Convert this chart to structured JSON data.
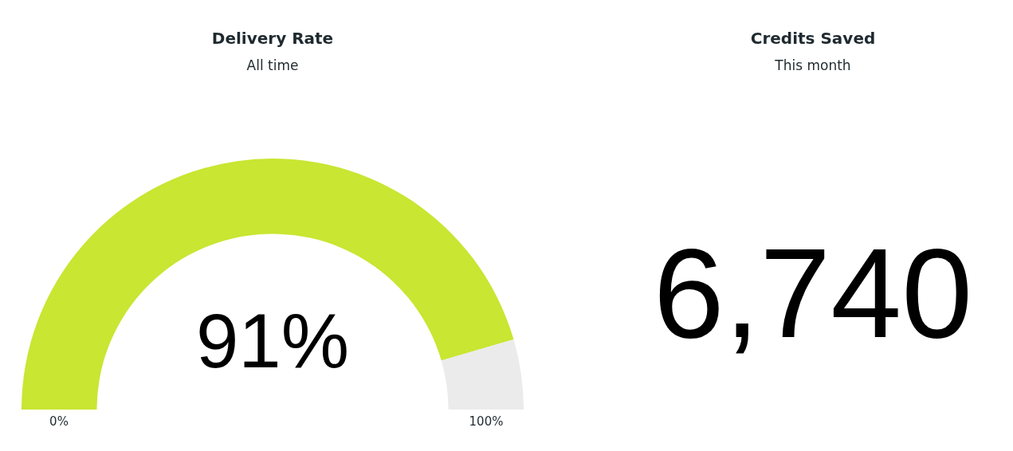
{
  "chart_data": [
    {
      "type": "donut",
      "title": "Delivery Rate",
      "subtitle": "All time",
      "categories": [
        null,
        null
      ],
      "values": [
        91,
        9
      ],
      "colors": [
        "#c8e632",
        "#ebebeb"
      ],
      "value_labels": [
        "91%",
        null
      ],
      "annotations": [
        "0%",
        "100%"
      ],
      "legend": false
    },
    {
      "type": "other",
      "title": "Credits Saved",
      "subtitle": "This month",
      "annotations": [
        "6,740"
      ]
    }
  ]
}
